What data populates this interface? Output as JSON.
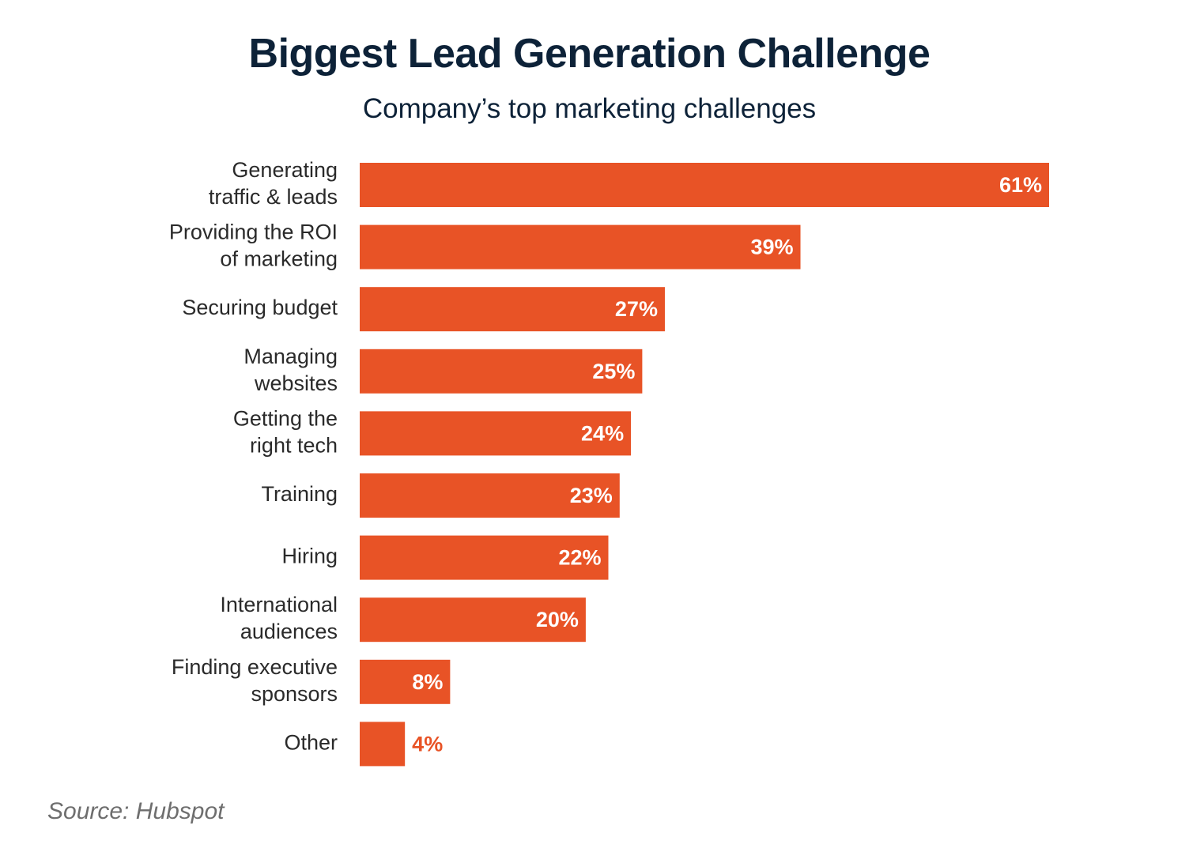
{
  "chart_data": {
    "type": "bar",
    "orientation": "horizontal",
    "title": "Biggest Lead Generation Challenge",
    "subtitle": "Company’s top marketing challenges",
    "categories": [
      [
        "Generating",
        "traffic & leads"
      ],
      [
        "Providing the ROI",
        "of marketing"
      ],
      [
        "Securing budget"
      ],
      [
        "Managing",
        "websites"
      ],
      [
        "Getting the",
        "right tech"
      ],
      [
        "Training"
      ],
      [
        "Hiring"
      ],
      [
        "International",
        "audiences"
      ],
      [
        "Finding executive",
        "sponsors"
      ],
      [
        "Other"
      ]
    ],
    "values": [
      61,
      39,
      27,
      25,
      24,
      23,
      22,
      20,
      8,
      4
    ],
    "value_labels": [
      "61%",
      "39%",
      "27%",
      "25%",
      "24%",
      "23%",
      "22%",
      "20%",
      "8%",
      "4%"
    ],
    "unit": "%",
    "xlim": [
      0,
      61
    ],
    "grid": false,
    "legend": "none",
    "bar_color": "#e85326",
    "inside_label_color": "#ffffff",
    "outside_label_color": "#e85326",
    "source": "Source: Hubspot"
  }
}
